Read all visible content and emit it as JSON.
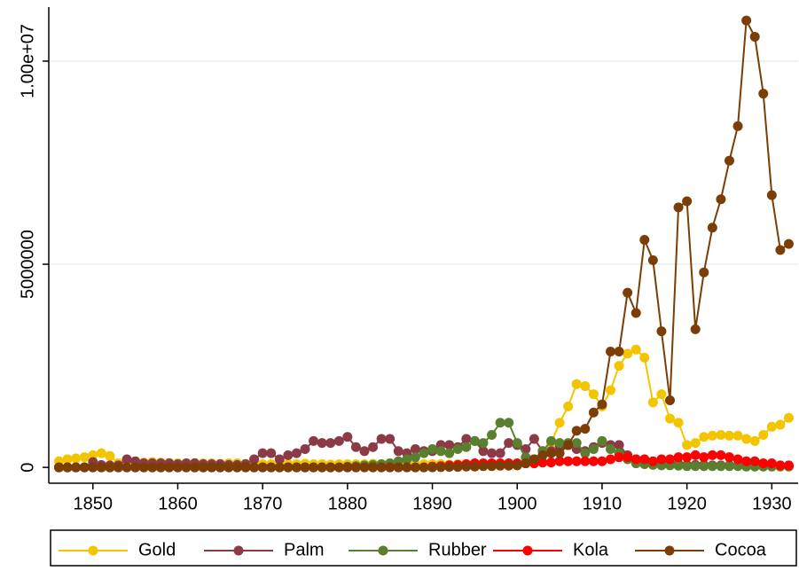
{
  "chart_data": {
    "type": "line",
    "x": [
      1846,
      1847,
      1848,
      1849,
      1850,
      1851,
      1852,
      1853,
      1854,
      1855,
      1856,
      1857,
      1858,
      1859,
      1860,
      1861,
      1862,
      1863,
      1864,
      1865,
      1866,
      1867,
      1868,
      1869,
      1870,
      1871,
      1872,
      1873,
      1874,
      1875,
      1876,
      1877,
      1878,
      1879,
      1880,
      1881,
      1882,
      1883,
      1884,
      1885,
      1886,
      1887,
      1888,
      1889,
      1890,
      1891,
      1892,
      1893,
      1894,
      1895,
      1896,
      1897,
      1898,
      1899,
      1900,
      1901,
      1902,
      1903,
      1904,
      1905,
      1906,
      1907,
      1908,
      1909,
      1910,
      1911,
      1912,
      1913,
      1914,
      1915,
      1916,
      1917,
      1918,
      1919,
      1920,
      1921,
      1922,
      1923,
      1924,
      1925,
      1926,
      1927,
      1928,
      1929,
      1930,
      1931,
      1932
    ],
    "series": [
      {
        "name": "Gold",
        "color": "#f2c500",
        "values": [
          150000,
          200000,
          220000,
          250000,
          300000,
          350000,
          280000,
          100000,
          80000,
          100000,
          120000,
          130000,
          120000,
          110000,
          100000,
          100000,
          110000,
          100000,
          100000,
          90000,
          100000,
          100000,
          90000,
          100000,
          80000,
          80000,
          70000,
          80000,
          80000,
          90000,
          80000,
          80000,
          70000,
          80000,
          80000,
          80000,
          80000,
          90000,
          80000,
          80000,
          80000,
          80000,
          70000,
          80000,
          80000,
          80000,
          70000,
          80000,
          80000,
          70000,
          60000,
          70000,
          60000,
          60000,
          50000,
          100000,
          200000,
          400000,
          600000,
          1100000,
          1500000,
          2050000,
          2000000,
          1800000,
          1500000,
          1900000,
          2500000,
          2800000,
          2900000,
          2700000,
          1600000,
          1800000,
          1200000,
          1100000,
          550000,
          600000,
          750000,
          780000,
          800000,
          780000,
          780000,
          700000,
          650000,
          800000,
          1000000,
          1050000,
          1220000
        ]
      },
      {
        "name": "Palm",
        "color": "#8b3a46",
        "values": [
          0,
          0,
          0,
          0,
          130000,
          60000,
          50000,
          50000,
          200000,
          150000,
          100000,
          100000,
          100000,
          100000,
          80000,
          100000,
          100000,
          80000,
          80000,
          80000,
          60000,
          60000,
          80000,
          200000,
          350000,
          350000,
          200000,
          300000,
          350000,
          450000,
          650000,
          600000,
          600000,
          650000,
          750000,
          500000,
          400000,
          500000,
          700000,
          700000,
          400000,
          350000,
          450000,
          400000,
          400000,
          550000,
          550000,
          500000,
          700000,
          650000,
          400000,
          350000,
          350000,
          600000,
          550000,
          450000,
          700000,
          400000,
          400000,
          500000,
          550000,
          450000,
          400000,
          500000,
          600000,
          550000,
          550000,
          300000,
          200000,
          150000,
          100000,
          100000,
          80000,
          80000,
          60000,
          60000,
          60000,
          50000,
          50000,
          50000,
          50000,
          40000,
          40000,
          40000,
          30000,
          30000,
          30000
        ]
      },
      {
        "name": "Rubber",
        "color": "#5a7f2f",
        "values": [
          0,
          0,
          0,
          0,
          0,
          0,
          0,
          0,
          0,
          0,
          0,
          0,
          0,
          0,
          0,
          0,
          0,
          0,
          0,
          0,
          0,
          0,
          0,
          0,
          0,
          0,
          0,
          0,
          0,
          0,
          0,
          0,
          0,
          0,
          20000,
          30000,
          50000,
          60000,
          80000,
          100000,
          150000,
          200000,
          250000,
          350000,
          450000,
          400000,
          350000,
          450000,
          500000,
          650000,
          600000,
          800000,
          1100000,
          1100000,
          600000,
          250000,
          200000,
          400000,
          650000,
          600000,
          600000,
          600000,
          350000,
          450000,
          650000,
          450000,
          350000,
          200000,
          100000,
          80000,
          60000,
          50000,
          50000,
          40000,
          30000,
          30000,
          30000,
          30000,
          30000,
          30000,
          30000,
          20000,
          20000,
          20000,
          20000,
          20000,
          20000
        ]
      },
      {
        "name": "Kola",
        "color": "#ff0000",
        "values": [
          0,
          0,
          0,
          0,
          0,
          0,
          0,
          0,
          0,
          0,
          0,
          0,
          0,
          0,
          0,
          0,
          0,
          0,
          0,
          0,
          0,
          0,
          0,
          0,
          0,
          0,
          0,
          0,
          0,
          0,
          0,
          0,
          0,
          0,
          0,
          0,
          0,
          0,
          0,
          0,
          0,
          0,
          0,
          0,
          20000,
          30000,
          50000,
          60000,
          80000,
          100000,
          100000,
          100000,
          100000,
          100000,
          100000,
          100000,
          100000,
          120000,
          120000,
          150000,
          150000,
          150000,
          150000,
          150000,
          150000,
          200000,
          250000,
          250000,
          200000,
          200000,
          150000,
          200000,
          200000,
          250000,
          250000,
          300000,
          250000,
          300000,
          300000,
          250000,
          200000,
          150000,
          150000,
          100000,
          100000,
          50000,
          50000
        ]
      },
      {
        "name": "Cocoa",
        "color": "#7a3e06",
        "values": [
          0,
          0,
          0,
          0,
          0,
          0,
          0,
          0,
          0,
          0,
          0,
          0,
          0,
          0,
          0,
          0,
          0,
          0,
          0,
          0,
          0,
          0,
          0,
          0,
          0,
          0,
          0,
          0,
          0,
          0,
          0,
          0,
          0,
          0,
          0,
          0,
          0,
          0,
          0,
          0,
          0,
          0,
          0,
          0,
          0,
          5000,
          10000,
          10000,
          20000,
          20000,
          30000,
          30000,
          40000,
          40000,
          50000,
          100000,
          200000,
          300000,
          350000,
          350000,
          550000,
          900000,
          950000,
          1350000,
          1550000,
          2850000,
          2850000,
          4300000,
          3800000,
          5600000,
          5100000,
          3350000,
          1650000,
          6400000,
          6550000,
          3400000,
          4800000,
          5900000,
          6600000,
          7550000,
          8400000,
          11000000,
          10600000,
          9200000,
          6700000,
          5350000,
          5500000
        ]
      }
    ],
    "xlim": [
      1844.8,
      1933.1
    ],
    "xticks": [
      1850,
      1860,
      1870,
      1880,
      1890,
      1900,
      1910,
      1920,
      1930
    ],
    "ylim": [
      -390000,
      11330000
    ],
    "yticks": [
      0,
      5000000,
      {
        "value": 10000000,
        "label": "1.00e+07"
      }
    ],
    "grid": true,
    "legend": "bottom"
  }
}
